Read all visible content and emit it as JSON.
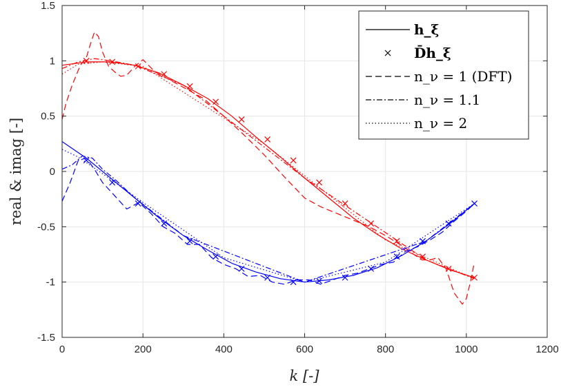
{
  "chart_data": {
    "type": "line",
    "xlabel": "k [-]",
    "ylabel": "real & imag [-]",
    "xlim": [
      0,
      1200
    ],
    "ylim": [
      -1.5,
      1.5
    ],
    "xticks": [
      0,
      200,
      400,
      600,
      800,
      1000,
      1200
    ],
    "yticks": [
      -1.5,
      -1,
      -0.5,
      0,
      0.5,
      1,
      1.5
    ],
    "xtick_labels": [
      "0",
      "200",
      "400",
      "600",
      "800",
      "1000",
      "1200"
    ],
    "ytick_labels": [
      "-1.5",
      "-1",
      "-0.5",
      "0",
      "0.5",
      "1",
      "1.5"
    ],
    "grid": true,
    "legend_position": "top-right",
    "legend": [
      {
        "label": "h_ξ",
        "style": "solid"
      },
      {
        "label": "D̄h_ξ",
        "style": "marker-x"
      },
      {
        "label": "n_ν = 1 (DFT)",
        "style": "dashed"
      },
      {
        "label": "n_ν = 1.1",
        "style": "dashdot"
      },
      {
        "label": "n_ν = 2",
        "style": "dotted"
      }
    ],
    "colors": {
      "real": "#ff0000",
      "imag": "#0000ff"
    },
    "series": [
      {
        "component": "real",
        "style": "solid",
        "color": "#ff0000",
        "x": [
          0,
          60,
          120,
          180,
          240,
          300,
          360,
          420,
          480,
          540,
          600,
          660,
          720,
          780,
          840,
          900,
          960,
          1020
        ],
        "y": [
          0.96,
          0.99,
          0.99,
          0.96,
          0.89,
          0.78,
          0.66,
          0.5,
          0.31,
          0.13,
          -0.06,
          -0.24,
          -0.42,
          -0.57,
          -0.7,
          -0.8,
          -0.89,
          -0.96
        ]
      },
      {
        "component": "real",
        "style": "marker-x",
        "color": "#ff0000",
        "x": [
          60,
          124,
          188,
          252,
          316,
          380,
          444,
          508,
          572,
          636,
          700,
          764,
          828,
          892,
          956,
          1020
        ],
        "y": [
          1.0,
          0.99,
          0.95,
          0.88,
          0.77,
          0.63,
          0.47,
          0.29,
          0.1,
          -0.1,
          -0.29,
          -0.47,
          -0.63,
          -0.77,
          -0.88,
          -0.96
        ]
      },
      {
        "component": "real",
        "style": "dashed",
        "color": "#ff0000",
        "x": [
          0,
          10,
          25,
          45,
          60,
          70,
          80,
          90,
          100,
          115,
          130,
          145,
          160,
          180,
          200,
          230,
          260,
          300,
          350,
          400,
          450,
          500,
          550,
          600,
          640,
          680,
          720,
          760,
          800,
          840,
          870,
          890,
          910,
          930,
          950,
          970,
          990,
          1000,
          1010,
          1020
        ],
        "y": [
          0.47,
          0.62,
          0.78,
          0.96,
          1.03,
          1.15,
          1.26,
          1.22,
          1.08,
          0.95,
          0.9,
          0.86,
          0.87,
          0.95,
          1.01,
          0.9,
          0.84,
          0.76,
          0.66,
          0.5,
          0.33,
          0.15,
          -0.05,
          -0.24,
          -0.32,
          -0.38,
          -0.44,
          -0.5,
          -0.58,
          -0.67,
          -0.75,
          -0.8,
          -0.8,
          -0.78,
          -0.88,
          -1.1,
          -1.2,
          -1.15,
          -1.0,
          -0.82
        ]
      },
      {
        "component": "real",
        "style": "dashdot",
        "color": "#ff0000",
        "x": [
          0,
          40,
          80,
          120,
          180,
          300,
          600,
          900,
          1020
        ],
        "y": [
          0.93,
          0.99,
          1.02,
          1.0,
          0.96,
          0.78,
          -0.06,
          -0.8,
          -0.97
        ]
      },
      {
        "component": "real",
        "style": "dotted",
        "color": "#ff0000",
        "x": [
          0,
          40,
          100,
          200,
          500,
          800,
          1020
        ],
        "y": [
          0.88,
          0.97,
          0.99,
          0.95,
          0.25,
          -0.62,
          -0.97
        ]
      },
      {
        "component": "imag",
        "style": "solid",
        "color": "#0000ff",
        "x": [
          0,
          60,
          120,
          180,
          240,
          300,
          360,
          420,
          480,
          540,
          600,
          660,
          720,
          780,
          840,
          900,
          960,
          1020
        ],
        "y": [
          0.27,
          0.12,
          -0.06,
          -0.24,
          -0.42,
          -0.58,
          -0.71,
          -0.83,
          -0.91,
          -0.97,
          -1.0,
          -0.98,
          -0.94,
          -0.87,
          -0.76,
          -0.63,
          -0.47,
          -0.29
        ]
      },
      {
        "component": "imag",
        "style": "marker-x",
        "color": "#0000ff",
        "x": [
          60,
          124,
          188,
          252,
          316,
          380,
          444,
          508,
          572,
          636,
          700,
          764,
          828,
          892,
          956,
          1020
        ],
        "y": [
          0.1,
          -0.1,
          -0.29,
          -0.47,
          -0.63,
          -0.77,
          -0.88,
          -0.96,
          -1.0,
          -0.99,
          -0.96,
          -0.88,
          -0.77,
          -0.63,
          -0.47,
          -0.29
        ]
      },
      {
        "component": "imag",
        "style": "dashed",
        "color": "#0000ff",
        "x": [
          0,
          20,
          40,
          60,
          80,
          100,
          130,
          160,
          190,
          220,
          250,
          280,
          310,
          340,
          370,
          400,
          430,
          460,
          490,
          520,
          550,
          580,
          610,
          640,
          670,
          700,
          730,
          760,
          790,
          820,
          850,
          880,
          910,
          940,
          970,
          1000,
          1020
        ],
        "y": [
          -0.27,
          -0.1,
          0.1,
          0.12,
          0.02,
          -0.1,
          -0.22,
          -0.34,
          -0.28,
          -0.38,
          -0.5,
          -0.56,
          -0.66,
          -0.66,
          -0.78,
          -0.84,
          -0.88,
          -0.95,
          -0.94,
          -1.0,
          -1.02,
          -0.98,
          -0.98,
          -1.02,
          -0.98,
          -0.94,
          -0.92,
          -0.88,
          -0.84,
          -0.82,
          -0.72,
          -0.68,
          -0.62,
          -0.55,
          -0.45,
          -0.36,
          -0.29
        ]
      },
      {
        "component": "imag",
        "style": "dashdot",
        "color": "#0000ff",
        "x": [
          0,
          25,
          50,
          75,
          100,
          130,
          180,
          300,
          600,
          900,
          1020
        ],
        "y": [
          0.02,
          0.06,
          0.14,
          0.12,
          0.02,
          -0.07,
          -0.24,
          -0.58,
          -1.0,
          -0.63,
          -0.29
        ]
      },
      {
        "component": "imag",
        "style": "dotted",
        "color": "#0000ff",
        "x": [
          0,
          40,
          100,
          200,
          400,
          600,
          800,
          1020
        ],
        "y": [
          0.2,
          0.13,
          -0.02,
          -0.28,
          -0.78,
          -1.0,
          -0.82,
          -0.29
        ]
      }
    ]
  }
}
